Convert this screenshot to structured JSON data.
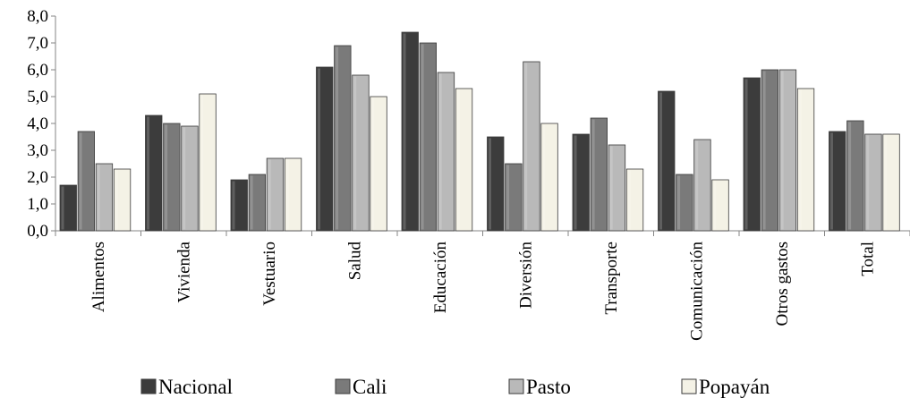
{
  "chart_data": {
    "type": "bar",
    "categories": [
      "Alimentos",
      "Vivienda",
      "Vestuario",
      "Salud",
      "Educación",
      "Diversión",
      "Transporte",
      "Comunicación",
      "Otros gastos",
      "Total"
    ],
    "series": [
      {
        "name": "Nacional",
        "values": [
          1.7,
          4.3,
          1.9,
          6.1,
          7.4,
          3.5,
          3.6,
          5.2,
          5.7,
          3.7
        ],
        "color": "#3c3c3c"
      },
      {
        "name": "Cali",
        "values": [
          3.7,
          4.0,
          2.1,
          6.9,
          7.0,
          2.5,
          4.2,
          2.1,
          6.0,
          4.1
        ],
        "color": "#7a7a7a"
      },
      {
        "name": "Pasto",
        "values": [
          2.5,
          3.9,
          2.7,
          5.8,
          5.9,
          6.3,
          3.2,
          3.4,
          6.0,
          3.6
        ],
        "color": "#b9b9b9"
      },
      {
        "name": "Popayán",
        "values": [
          2.3,
          5.1,
          2.7,
          5.0,
          5.3,
          4.0,
          2.3,
          1.9,
          5.3,
          3.6
        ],
        "color": "#f4f2e6"
      }
    ],
    "yticks": [
      "0,0",
      "1,0",
      "2,0",
      "3,0",
      "4,0",
      "5,0",
      "6,0",
      "7,0",
      "8,0"
    ],
    "ylim": [
      0,
      8
    ],
    "title": "",
    "xlabel": "",
    "ylabel": "",
    "legend_position": "bottom",
    "grid": false
  }
}
